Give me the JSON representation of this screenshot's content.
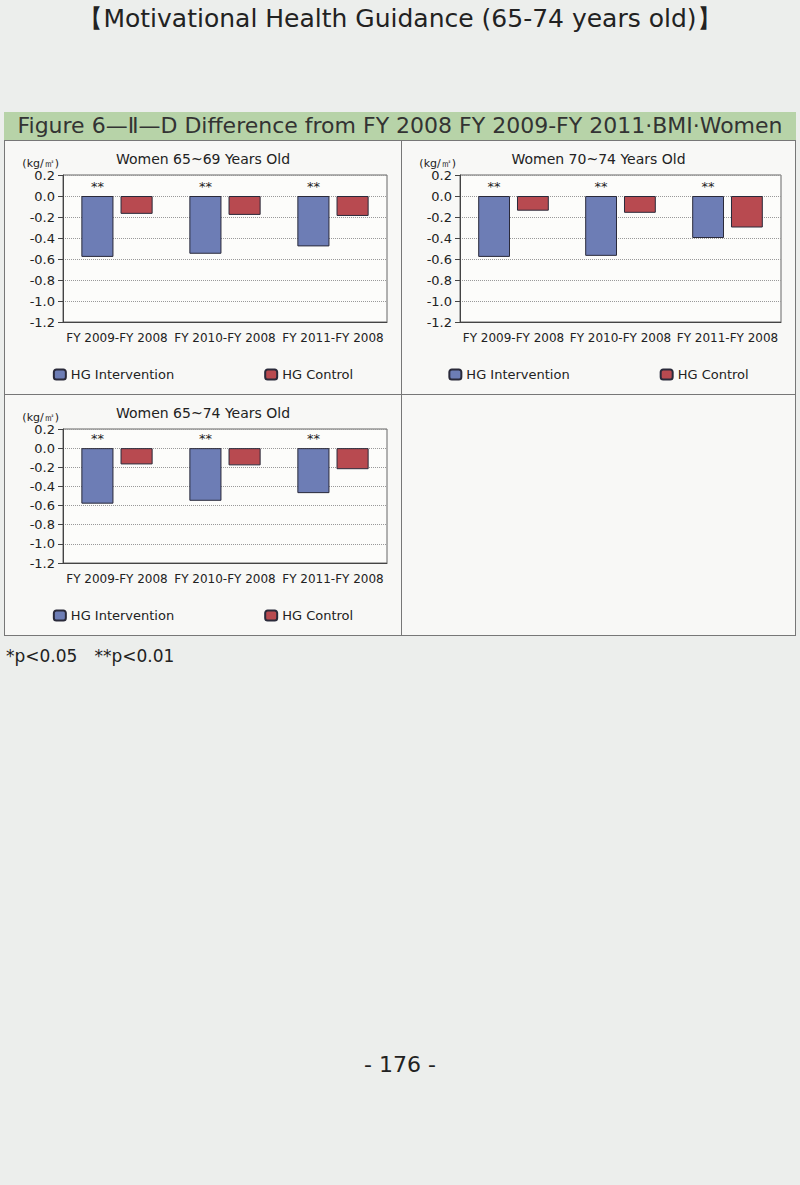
{
  "header": "【Motivational Health Guidance (65-74 years old)】",
  "figure_title": "Figure 6—Ⅱ—D Difference from FY 2008 FY 2009-FY 2011·BMI·Women",
  "footnote": "*p<0.05　**p<0.01",
  "page_number": "- 176 -",
  "chart_data": [
    {
      "type": "bar",
      "title": "Women 65~69 Years Old",
      "y_label": "(kg/㎡)",
      "categories": [
        "FY 2009-FY 2008",
        "FY 2010-FY 2008",
        "FY 2011-FY 2008"
      ],
      "series": [
        {
          "name": "HG Intervention",
          "color": "#6d7db5",
          "values": [
            -0.58,
            -0.55,
            -0.48
          ]
        },
        {
          "name": "HG Control",
          "color": "#b84a50",
          "values": [
            -0.17,
            -0.18,
            -0.19
          ]
        }
      ],
      "annotations": [
        {
          "category": "FY 2009-FY 2008",
          "text": "**"
        },
        {
          "category": "FY 2010-FY 2008",
          "text": "**"
        },
        {
          "category": "FY 2011-FY 2008",
          "text": "**"
        }
      ],
      "ylim": [
        -1.2,
        0.2
      ],
      "yticks": [
        -1.2,
        {
          "value": -1,
          "label": "-1.0"
        },
        -0.8,
        -0.6,
        -0.4,
        -0.2,
        {
          "value": 0,
          "label": "0.0"
        },
        0.2
      ],
      "grid": true,
      "legend": "bottom"
    },
    {
      "type": "bar",
      "title": "Women 70~74 Years Old",
      "y_label": "(kg/㎡)",
      "categories": [
        "FY 2009-FY 2008",
        "FY 2010-FY 2008",
        "FY 2011-FY 2008"
      ],
      "series": [
        {
          "name": "HG Intervention",
          "color": "#6d7db5",
          "values": [
            -0.58,
            -0.57,
            -0.4
          ]
        },
        {
          "name": "HG Control",
          "color": "#b84a50",
          "values": [
            -0.14,
            -0.16,
            -0.3
          ]
        }
      ],
      "annotations": [
        {
          "category": "FY 2009-FY 2008",
          "text": "**"
        },
        {
          "category": "FY 2010-FY 2008",
          "text": "**"
        },
        {
          "category": "FY 2011-FY 2008",
          "text": "**"
        }
      ],
      "ylim": [
        -1.2,
        0.2
      ],
      "yticks": [
        -1.2,
        {
          "value": -1,
          "label": "-1.0"
        },
        -0.8,
        -0.6,
        -0.4,
        -0.2,
        {
          "value": 0,
          "label": "0.0"
        },
        0.2
      ],
      "grid": true,
      "legend": "bottom"
    },
    {
      "type": "bar",
      "title": "Women 65~74 Years Old",
      "y_label": "(kg/㎡)",
      "categories": [
        "FY 2009-FY 2008",
        "FY 2010-FY 2008",
        "FY 2011-FY 2008"
      ],
      "series": [
        {
          "name": "HG Intervention",
          "color": "#6d7db5",
          "values": [
            -0.58,
            -0.55,
            -0.47
          ]
        },
        {
          "name": "HG Control",
          "color": "#b84a50",
          "values": [
            -0.17,
            -0.18,
            -0.22
          ]
        }
      ],
      "annotations": [
        {
          "category": "FY 2009-FY 2008",
          "text": "**"
        },
        {
          "category": "FY 2010-FY 2008",
          "text": "**"
        },
        {
          "category": "FY 2011-FY 2008",
          "text": "**"
        }
      ],
      "ylim": [
        -1.2,
        0.2
      ],
      "yticks": [
        -1.2,
        {
          "value": -1,
          "label": "-1.0"
        },
        -0.8,
        -0.6,
        -0.4,
        -0.2,
        {
          "value": 0,
          "label": "0.0"
        },
        0.2
      ],
      "grid": true,
      "legend": "bottom"
    }
  ]
}
